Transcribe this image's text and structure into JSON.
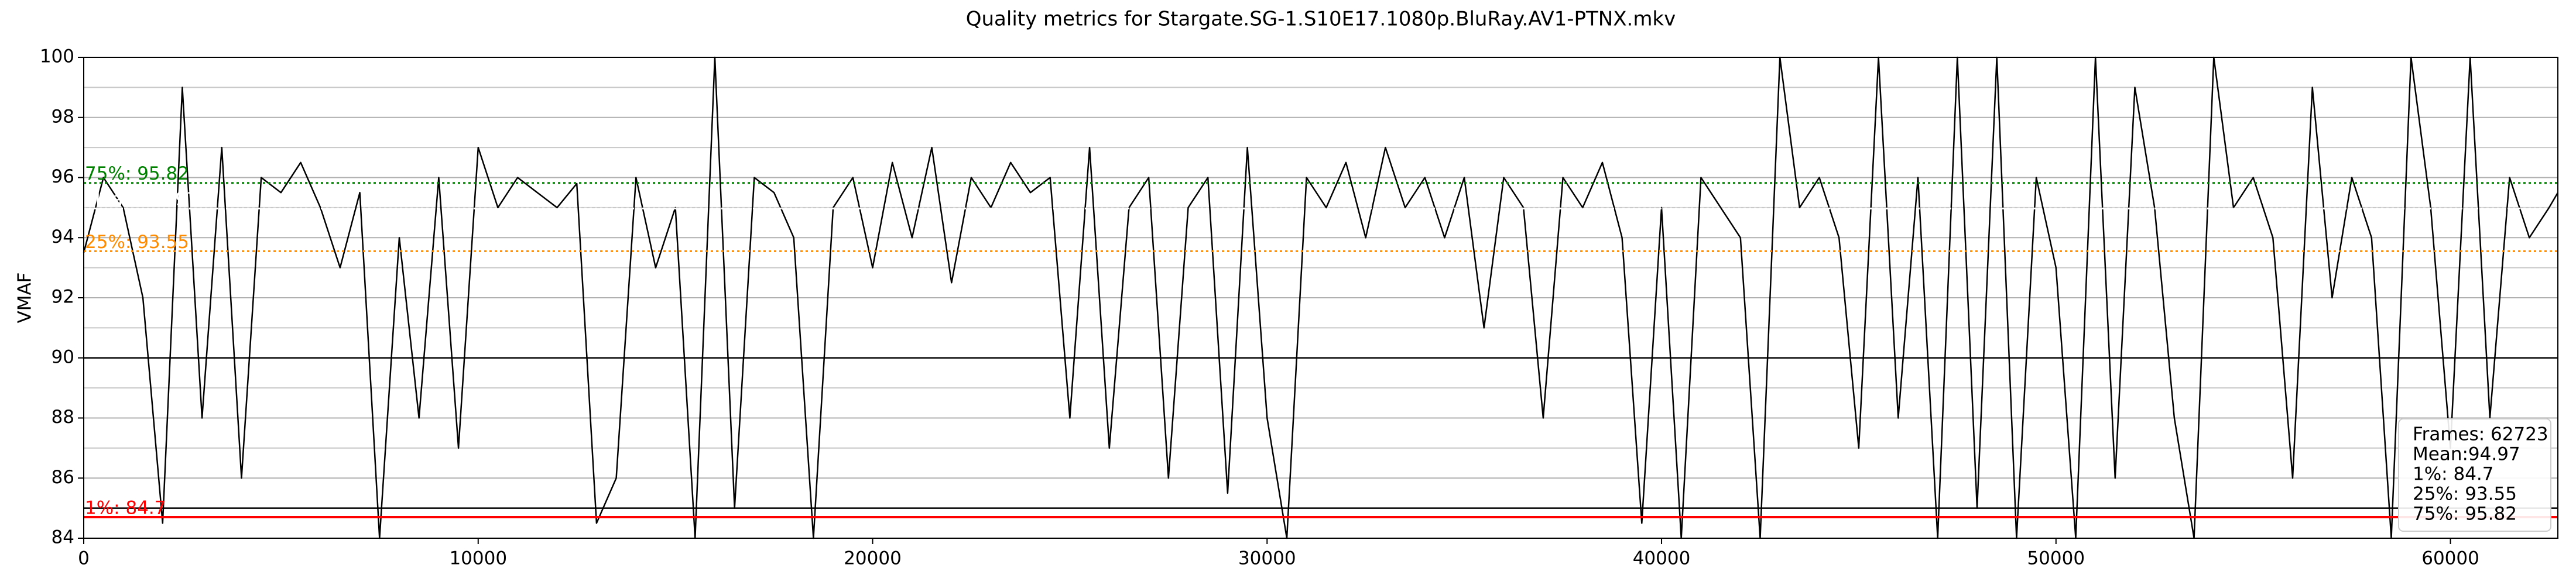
{
  "chart_data": {
    "type": "line",
    "title": "Quality metrics for Stargate.SG-1.S10E17.1080p.BluRay.AV1-PTNX.mkv",
    "ylabel": "VMAF",
    "xlim": [
      0,
      62723
    ],
    "ylim": [
      84,
      100
    ],
    "xticks": [
      0,
      10000,
      20000,
      30000,
      40000,
      50000,
      60000
    ],
    "yticks": [
      84,
      86,
      88,
      90,
      92,
      94,
      96,
      98,
      100
    ],
    "yminor_ticks": [
      85,
      87,
      89,
      91,
      93,
      95,
      97,
      99
    ],
    "grid": true,
    "hlines": [
      {
        "value": 85,
        "color": "#000000"
      },
      {
        "value": 90,
        "color": "#000000"
      }
    ],
    "stat_lines": [
      {
        "label": "1%: 84.7",
        "value": 84.7,
        "color": "#ff0000",
        "dashed": false
      },
      {
        "label": "25%: 93.55",
        "value": 93.55,
        "color": "#ff8c00",
        "dashed": true
      },
      {
        "label": "Mean: 94.97",
        "value": 94.97,
        "color": "#ffffff",
        "dashed": true
      },
      {
        "label": "75%: 95.82",
        "value": 95.82,
        "color": "#008000",
        "dashed": true
      }
    ],
    "legend": "lower right",
    "legend_texts": [
      "Frames: 62723",
      "Mean:94.97",
      "1%: 84.7",
      "25%: 93.55",
      "75%: 95.82"
    ],
    "series": [
      {
        "name": "VMAF",
        "color": "#000000",
        "x": [
          0,
          500,
          1000,
          1500,
          2000,
          2500,
          3000,
          3500,
          4000,
          4500,
          5000,
          5500,
          6000,
          6500,
          7000,
          7500,
          8000,
          8500,
          9000,
          9500,
          10000,
          10500,
          11000,
          11500,
          12000,
          12500,
          13000,
          13500,
          14000,
          14500,
          15000,
          15500,
          16000,
          16500,
          17000,
          17500,
          18000,
          18500,
          19000,
          19500,
          20000,
          20500,
          21000,
          21500,
          22000,
          22500,
          23000,
          23500,
          24000,
          24500,
          25000,
          25500,
          26000,
          26500,
          27000,
          27500,
          28000,
          28500,
          29000,
          29500,
          30000,
          30500,
          31000,
          31500,
          32000,
          32500,
          33000,
          33500,
          34000,
          34500,
          35000,
          35500,
          36000,
          36500,
          37000,
          37500,
          38000,
          38500,
          39000,
          39500,
          40000,
          40500,
          41000,
          41500,
          42000,
          42500,
          43000,
          43500,
          44000,
          44500,
          45000,
          45500,
          46000,
          46500,
          47000,
          47500,
          48000,
          48500,
          49000,
          49500,
          50000,
          50500,
          51000,
          51500,
          52000,
          52500,
          53000,
          53500,
          54000,
          54500,
          55000,
          55500,
          56000,
          56500,
          57000,
          57500,
          58000,
          58500,
          59000,
          59500,
          60000,
          60500,
          61000,
          61500,
          62000,
          62500,
          62723
        ],
        "values": [
          93.5,
          96,
          95,
          92,
          84.5,
          99,
          88,
          97,
          86,
          96,
          95.5,
          96.5,
          95,
          93,
          95.5,
          84,
          94,
          88,
          96,
          87,
          97,
          95,
          96,
          95.5,
          95,
          95.8,
          84.5,
          86,
          96,
          93,
          95,
          84,
          100,
          85,
          96,
          95.5,
          94,
          84,
          95,
          96,
          93,
          96.5,
          94,
          97,
          92.5,
          96,
          95,
          96.5,
          95.5,
          96,
          88,
          97,
          87,
          95,
          96,
          86,
          95,
          96,
          85.5,
          97,
          88,
          84,
          96,
          95,
          96.5,
          94,
          97,
          95,
          96,
          94,
          96,
          91,
          96,
          95,
          88,
          96,
          95,
          96.5,
          94,
          84.5,
          95,
          84,
          96,
          95,
          94,
          84,
          100,
          95,
          96,
          94,
          87,
          100,
          88,
          96,
          84,
          100,
          85,
          100,
          84,
          96,
          93,
          84,
          100,
          86,
          99,
          95,
          88,
          84,
          100,
          95,
          96,
          94,
          86,
          99,
          92,
          96,
          94,
          84,
          100,
          95,
          87,
          100,
          88,
          96,
          94,
          95,
          95.5
        ]
      }
    ]
  }
}
